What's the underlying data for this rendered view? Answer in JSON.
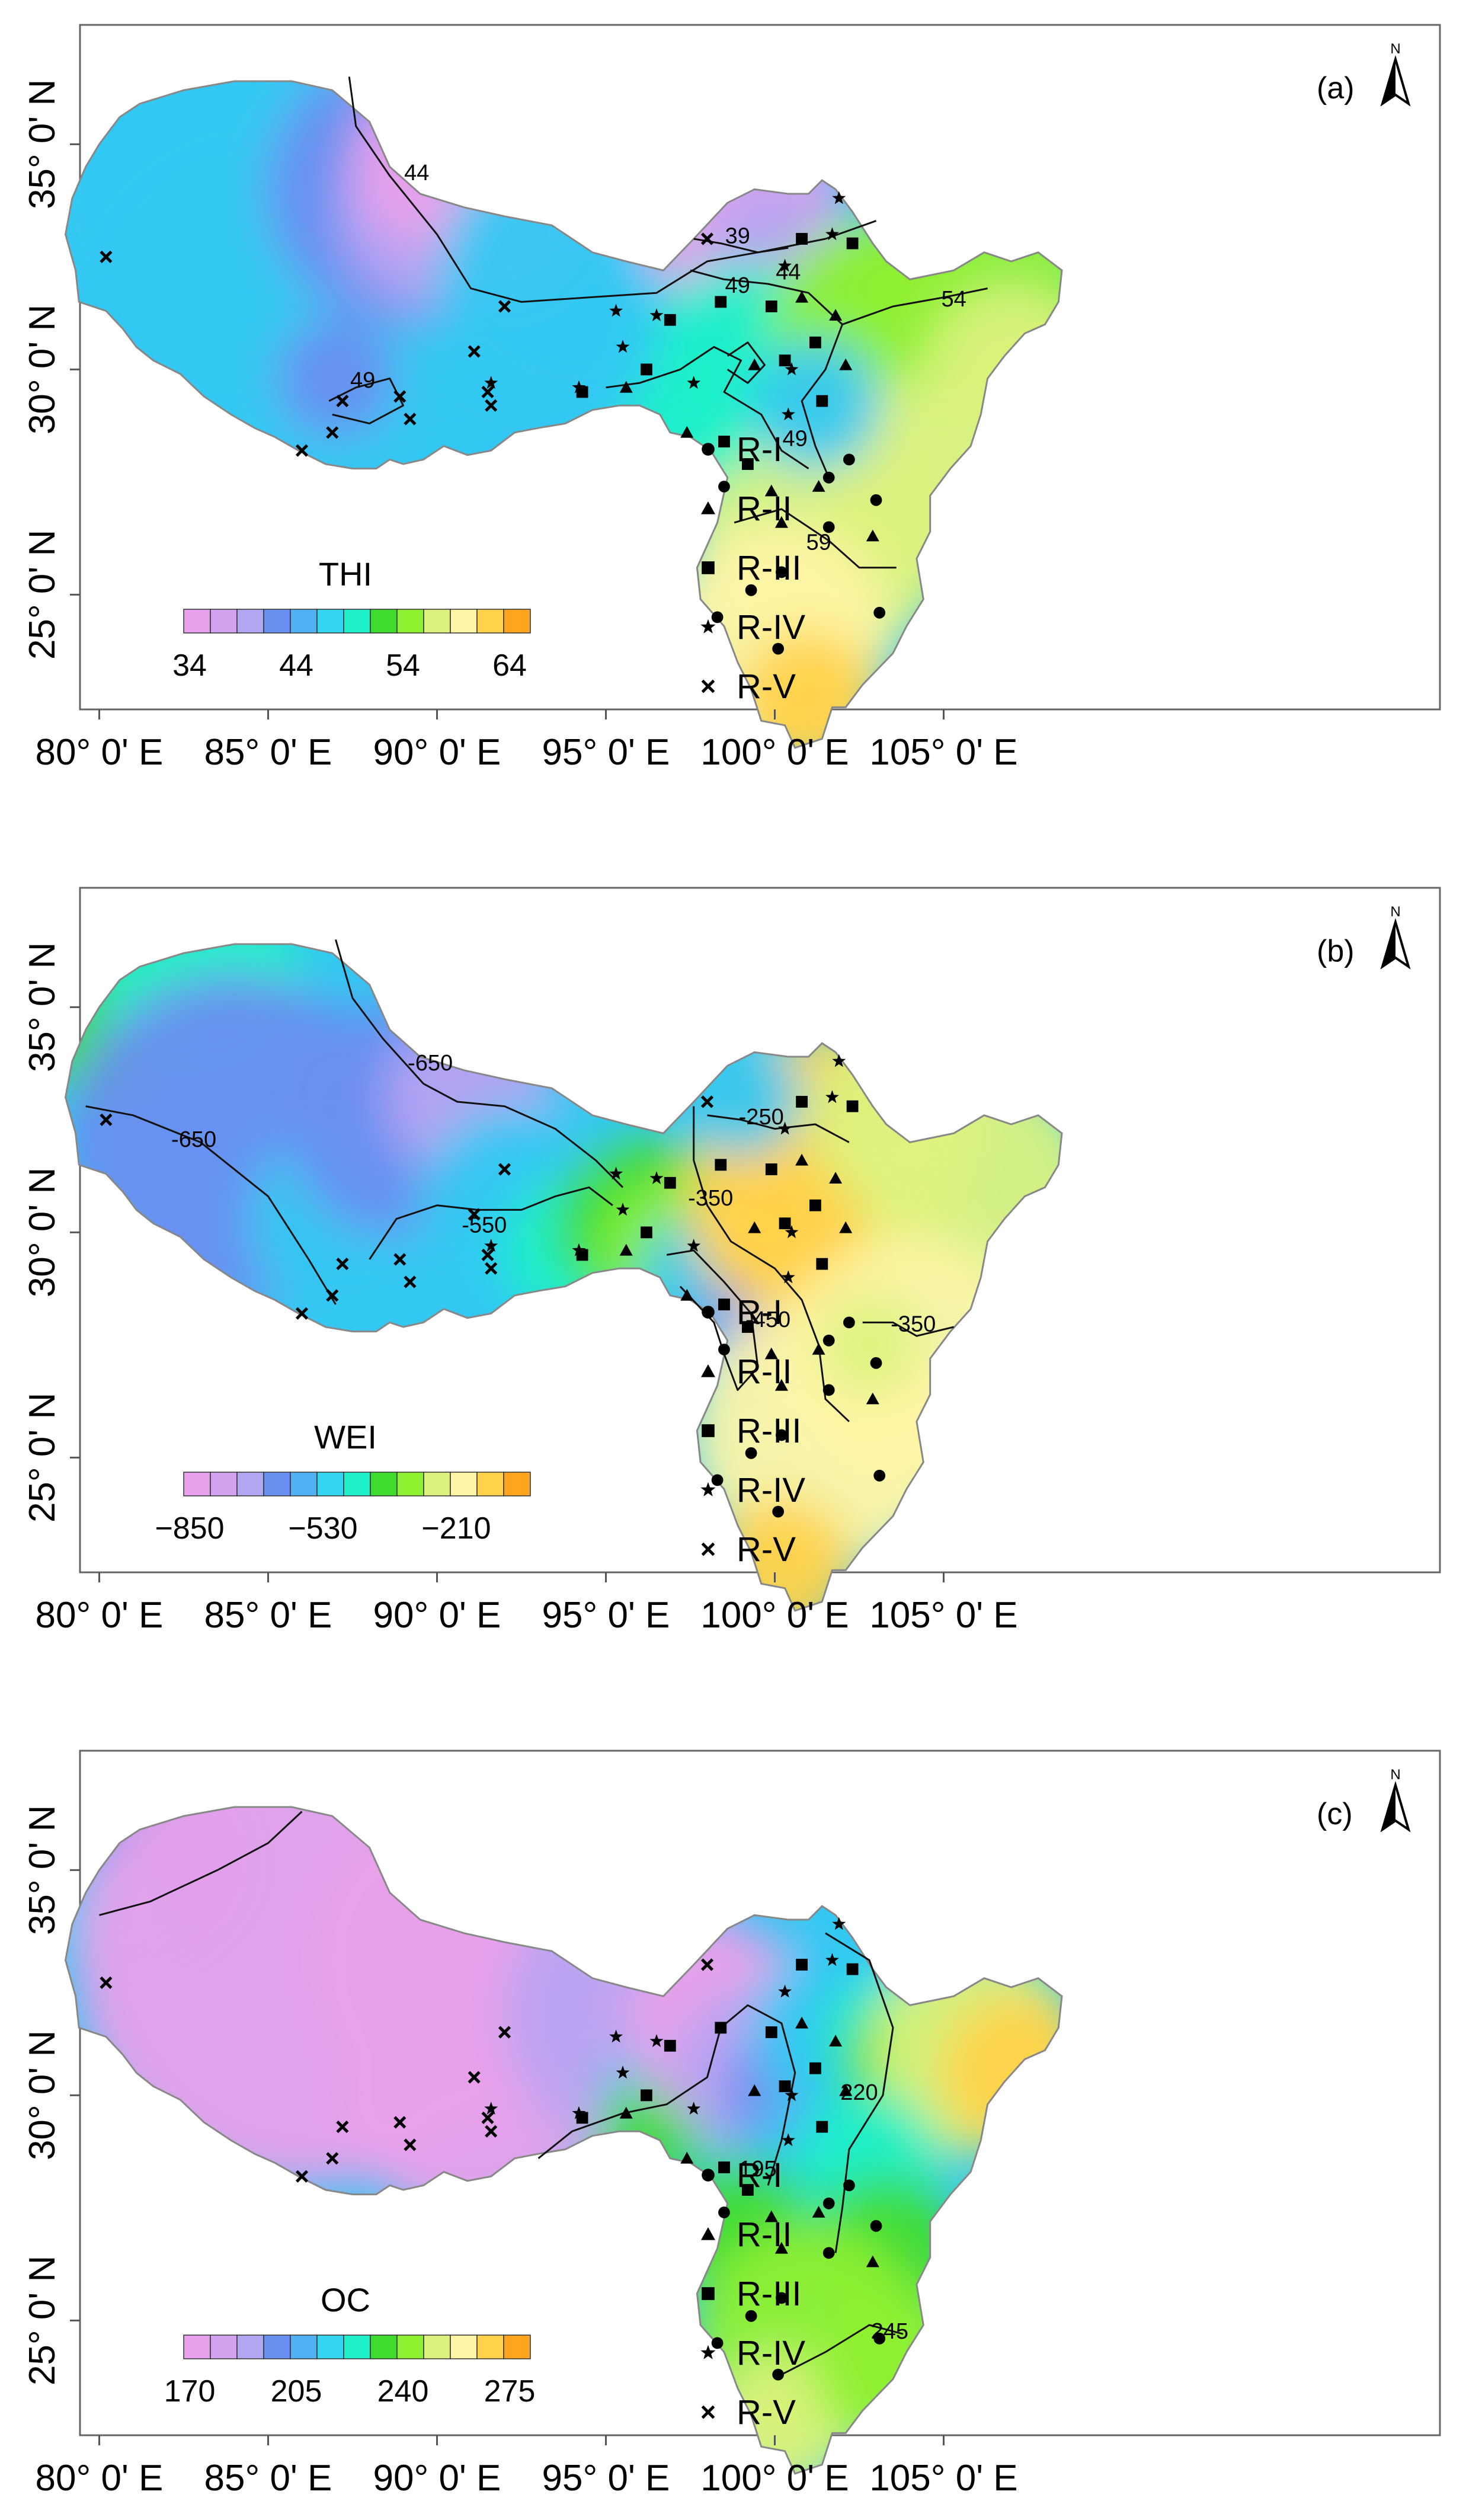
{
  "x_ticks": [
    "80° 0' E",
    "85° 0' E",
    "90° 0' E",
    "95° 0' E",
    "100° 0' E",
    "105° 0' E"
  ],
  "y_ticks": [
    "35° 0' N",
    "30° 0' N",
    "25° 0' N"
  ],
  "legend": {
    "regions": [
      {
        "symbol": "circle",
        "label": "R-I"
      },
      {
        "symbol": "triangle",
        "label": "R-II"
      },
      {
        "symbol": "square",
        "label": "R-III"
      },
      {
        "symbol": "star",
        "label": "R-IV"
      },
      {
        "symbol": "cross",
        "label": "R-V"
      }
    ]
  },
  "north_label": "N",
  "panels": [
    {
      "id": "a",
      "label": "(a)",
      "colorbar_title": "THI",
      "colorbar_ticks": [
        "34",
        "44",
        "54",
        "64"
      ],
      "colors": [
        "#e9a0ea",
        "#b8a4f2",
        "#6a8ff0",
        "#33c8f2",
        "#1ef0c8",
        "#3fdb2e",
        "#8ff030",
        "#dcf27e",
        "#fff5a6",
        "#ffd24a",
        "#ffa41e"
      ],
      "contour_labels": [
        "44",
        "39",
        "44",
        "49",
        "54",
        "49",
        "49",
        "59"
      ]
    },
    {
      "id": "b",
      "label": "(b)",
      "colorbar_title": "WEI",
      "colorbar_ticks": [
        "−850",
        "−530",
        "−210"
      ],
      "colors": [
        "#e9a0ea",
        "#b8a4f2",
        "#6a8ff0",
        "#33c8f2",
        "#1ef0c8",
        "#3fdb2e",
        "#8ff030",
        "#dcf27e",
        "#fff5a6",
        "#ffd24a",
        "#ffa41e"
      ],
      "contour_labels": [
        "-650",
        "-650",
        "-550",
        "-250",
        "-350",
        "-450",
        "-350"
      ]
    },
    {
      "id": "c",
      "label": "(c)",
      "colorbar_title": "OC",
      "colorbar_ticks": [
        "170",
        "205",
        "240",
        "275"
      ],
      "colors": [
        "#e9a0ea",
        "#b8a4f2",
        "#6a8ff0",
        "#33c8f2",
        "#1ef0c8",
        "#3fdb2e",
        "#8ff030",
        "#dcf27e",
        "#fff5a6",
        "#ffd24a",
        "#ffa41e"
      ],
      "contour_labels": [
        "195",
        "220",
        "245"
      ]
    }
  ],
  "stations": [
    {
      "type": "V",
      "lon": 80.2,
      "lat": 32.5
    },
    {
      "type": "V",
      "lon": 86.0,
      "lat": 28.2
    },
    {
      "type": "V",
      "lon": 86.9,
      "lat": 28.6
    },
    {
      "type": "V",
      "lon": 87.2,
      "lat": 29.3
    },
    {
      "type": "V",
      "lon": 88.9,
      "lat": 29.4
    },
    {
      "type": "V",
      "lon": 89.2,
      "lat": 28.9
    },
    {
      "type": "V",
      "lon": 91.1,
      "lat": 30.4
    },
    {
      "type": "V",
      "lon": 91.5,
      "lat": 29.5
    },
    {
      "type": "V",
      "lon": 91.6,
      "lat": 29.2
    },
    {
      "type": "V",
      "lon": 92.0,
      "lat": 31.4
    },
    {
      "type": "V",
      "lon": 98.0,
      "lat": 32.9
    },
    {
      "type": "IV",
      "lon": 91.6,
      "lat": 29.7
    },
    {
      "type": "IV",
      "lon": 94.2,
      "lat": 29.6
    },
    {
      "type": "IV",
      "lon": 95.3,
      "lat": 31.3
    },
    {
      "type": "IV",
      "lon": 95.5,
      "lat": 30.5
    },
    {
      "type": "IV",
      "lon": 96.5,
      "lat": 31.2
    },
    {
      "type": "IV",
      "lon": 97.6,
      "lat": 29.7
    },
    {
      "type": "IV",
      "lon": 100.3,
      "lat": 32.3
    },
    {
      "type": "IV",
      "lon": 100.5,
      "lat": 30.0
    },
    {
      "type": "IV",
      "lon": 100.4,
      "lat": 29.0
    },
    {
      "type": "IV",
      "lon": 101.7,
      "lat": 33.0
    },
    {
      "type": "IV",
      "lon": 101.9,
      "lat": 33.8
    },
    {
      "type": "III",
      "lon": 94.3,
      "lat": 29.5
    },
    {
      "type": "III",
      "lon": 96.2,
      "lat": 30.0
    },
    {
      "type": "III",
      "lon": 96.9,
      "lat": 31.1
    },
    {
      "type": "III",
      "lon": 98.4,
      "lat": 31.5
    },
    {
      "type": "III",
      "lon": 98.5,
      "lat": 28.4
    },
    {
      "type": "III",
      "lon": 99.2,
      "lat": 27.9
    },
    {
      "type": "III",
      "lon": 99.9,
      "lat": 31.4
    },
    {
      "type": "III",
      "lon": 100.3,
      "lat": 30.2
    },
    {
      "type": "III",
      "lon": 101.2,
      "lat": 30.6
    },
    {
      "type": "III",
      "lon": 101.4,
      "lat": 29.3
    },
    {
      "type": "III",
      "lon": 100.8,
      "lat": 32.9
    },
    {
      "type": "III",
      "lon": 102.3,
      "lat": 32.8
    },
    {
      "type": "II",
      "lon": 95.6,
      "lat": 29.6
    },
    {
      "type": "II",
      "lon": 97.4,
      "lat": 28.6
    },
    {
      "type": "II",
      "lon": 99.4,
      "lat": 30.1
    },
    {
      "type": "II",
      "lon": 99.9,
      "lat": 27.3
    },
    {
      "type": "II",
      "lon": 100.2,
      "lat": 26.6
    },
    {
      "type": "II",
      "lon": 100.8,
      "lat": 31.6
    },
    {
      "type": "II",
      "lon": 101.3,
      "lat": 27.4
    },
    {
      "type": "II",
      "lon": 101.8,
      "lat": 31.2
    },
    {
      "type": "II",
      "lon": 102.1,
      "lat": 30.1
    },
    {
      "type": "II",
      "lon": 102.9,
      "lat": 26.3
    },
    {
      "type": "I",
      "lon": 98.3,
      "lat": 24.5
    },
    {
      "type": "I",
      "lon": 98.5,
      "lat": 27.4
    },
    {
      "type": "I",
      "lon": 99.3,
      "lat": 25.1
    },
    {
      "type": "I",
      "lon": 100.1,
      "lat": 23.8
    },
    {
      "type": "I",
      "lon": 100.2,
      "lat": 25.5
    },
    {
      "type": "I",
      "lon": 101.6,
      "lat": 26.5
    },
    {
      "type": "I",
      "lon": 101.6,
      "lat": 27.6
    },
    {
      "type": "I",
      "lon": 102.2,
      "lat": 28.0
    },
    {
      "type": "I",
      "lon": 103.0,
      "lat": 27.1
    },
    {
      "type": "I",
      "lon": 103.1,
      "lat": 24.6
    }
  ]
}
